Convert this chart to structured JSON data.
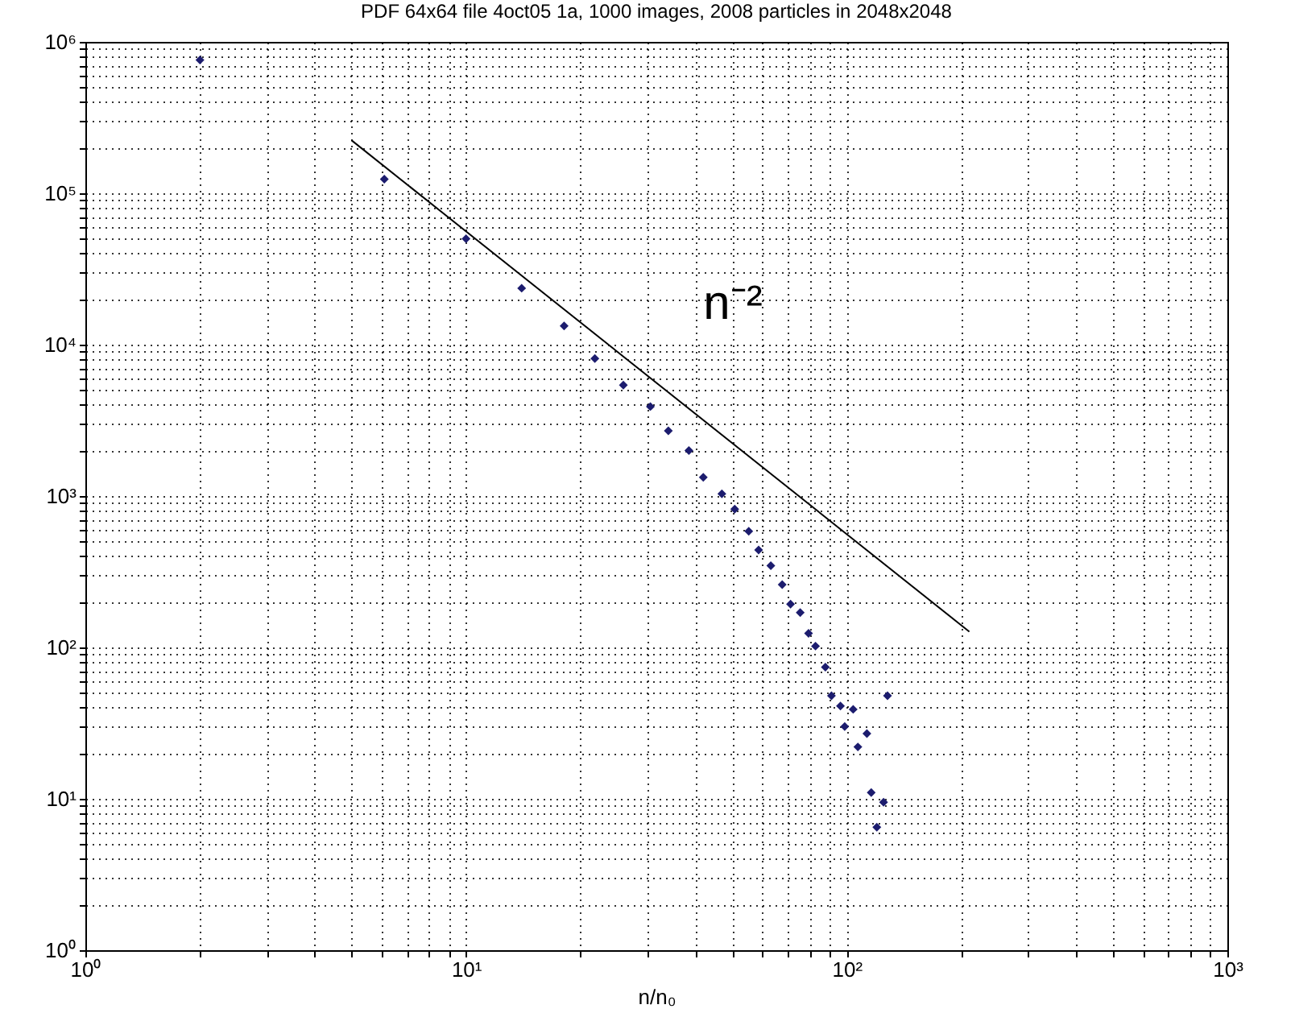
{
  "chart_data": {
    "type": "scatter",
    "title": "PDF 64x64 file 4oct05 1a, 1000 images, 2008 particles in 2048x2048",
    "xlabel": "n/n₀",
    "log": "xy",
    "grid": true,
    "xlim": [
      1,
      1000
    ],
    "ylim": [
      1,
      1000000
    ],
    "xticks": [
      {
        "value": 1,
        "label": "10⁰"
      },
      {
        "value": 10,
        "label": "10¹"
      },
      {
        "value": 100,
        "label": "10²"
      },
      {
        "value": 1000,
        "label": "10³"
      }
    ],
    "yticks": [
      {
        "value": 1,
        "label": "10⁰"
      },
      {
        "value": 10,
        "label": "10¹"
      },
      {
        "value": 100,
        "label": "10²"
      },
      {
        "value": 1000,
        "label": "10³"
      },
      {
        "value": 10000,
        "label": "10⁴"
      },
      {
        "value": 100000,
        "label": "10⁵"
      },
      {
        "value": 1000000,
        "label": "10⁶"
      }
    ],
    "annotations": [
      "n⁻²"
    ],
    "series": [
      {
        "marker": "diamond",
        "color": "#1c1c6e",
        "x": [
          2,
          6.1,
          10,
          14,
          18.1,
          21.8,
          25.9,
          30.5,
          34,
          38.5,
          42,
          47,
          50.8,
          55.3,
          58.7,
          63.2,
          67.7,
          71.2,
          75.5,
          79.4,
          82.8,
          87.9,
          91.2,
          96.3,
          104,
          128,
          98.8,
          113,
          107,
          116,
          125,
          120
        ],
        "values": [
          760000,
          124000,
          50000,
          23600,
          13300,
          8100,
          5400,
          3900,
          2700,
          2000,
          1330,
          1035,
          820,
          585,
          440,
          347,
          260,
          193,
          170,
          124,
          102,
          74,
          48,
          41,
          39,
          48,
          30,
          27,
          22,
          11,
          9.5,
          6.5
        ]
      },
      {
        "type": "line",
        "color": "#000000",
        "x": [
          5,
          210
        ],
        "values": [
          224000,
          127
        ]
      }
    ]
  }
}
